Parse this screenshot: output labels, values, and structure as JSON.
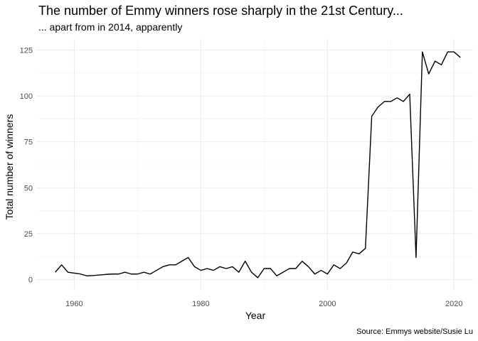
{
  "chart_data": {
    "type": "line",
    "title": "The number of Emmy winners rose sharply in the 21st Century...",
    "subtitle": "... apart from in 2014, apparently",
    "xlabel": "Year",
    "ylabel": "Total number of winners",
    "caption": "Source: Emmys website/Susie Lu",
    "xlim": [
      1954,
      2023
    ],
    "ylim": [
      -6,
      131
    ],
    "x_ticks": [
      1960,
      1980,
      2000,
      2020
    ],
    "x_minor_ticks": [
      1970,
      1990,
      2010
    ],
    "y_ticks": [
      0,
      25,
      50,
      75,
      100,
      125
    ],
    "y_minor_ticks": [
      12.5,
      37.5,
      62.5,
      87.5,
      112.5
    ],
    "grid": true,
    "legend": "none",
    "series": [
      {
        "color": "#000000",
        "x": [
          1957,
          1958,
          1959,
          1960,
          1961,
          1962,
          1963,
          1964,
          1965,
          1966,
          1967,
          1968,
          1969,
          1970,
          1971,
          1972,
          1973,
          1974,
          1975,
          1976,
          1977,
          1978,
          1979,
          1980,
          1981,
          1982,
          1983,
          1984,
          1985,
          1986,
          1987,
          1988,
          1989,
          1990,
          1991,
          1992,
          1993,
          1994,
          1995,
          1996,
          1997,
          1998,
          1999,
          2000,
          2001,
          2002,
          2003,
          2004,
          2005,
          2006,
          2007,
          2008,
          2009,
          2010,
          2011,
          2012,
          2013,
          2014,
          2015,
          2016,
          2017,
          2018,
          2019,
          2020,
          2021
        ],
        "values": [
          4,
          8,
          4,
          3.5,
          3,
          2,
          2.2,
          2.5,
          2.8,
          3,
          3,
          4,
          3,
          3,
          4,
          3,
          5,
          7,
          8,
          8,
          10,
          12,
          7,
          5,
          6,
          5,
          7,
          6,
          7,
          4,
          10,
          4,
          1,
          6,
          6,
          2,
          4,
          6,
          6,
          10,
          7,
          3,
          5,
          3,
          8,
          6,
          9,
          15,
          14,
          17,
          89,
          94,
          97,
          97,
          99,
          97,
          101,
          12,
          124,
          112,
          119,
          117,
          124,
          124,
          121
        ]
      }
    ]
  }
}
